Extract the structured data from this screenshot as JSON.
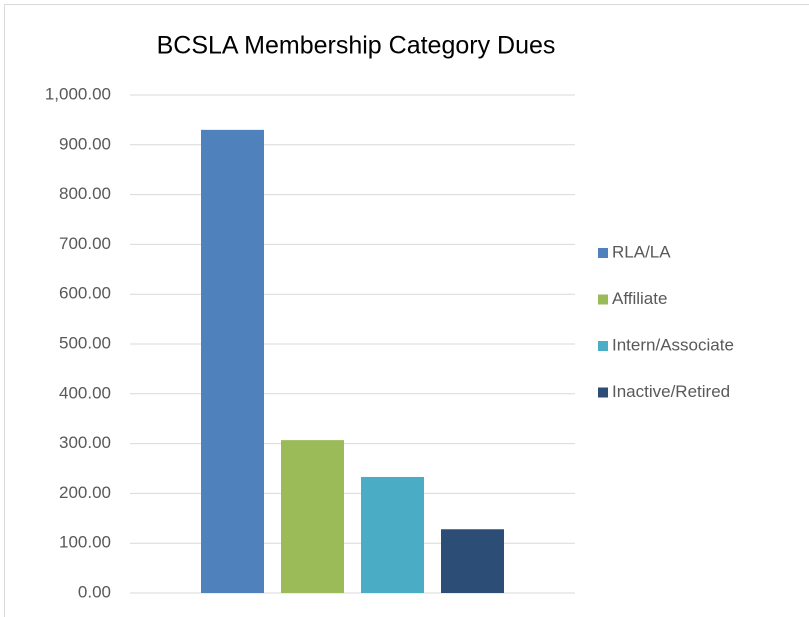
{
  "chart_data": {
    "type": "bar",
    "title": "BCSLA Membership Category Dues",
    "categories": [
      null
    ],
    "series": [
      {
        "name": "RLA/LA",
        "color": "#4f81bd",
        "values": [
          930
        ]
      },
      {
        "name": "Affiliate",
        "color": "#9bbb59",
        "values": [
          307
        ]
      },
      {
        "name": "Intern/Associate",
        "color": "#4bacc6",
        "values": [
          233
        ]
      },
      {
        "name": "Inactive/Retired",
        "color": "#2c4d75",
        "values": [
          128
        ]
      }
    ],
    "ylim": [
      0,
      1000
    ],
    "yticks": [
      {
        "value": 0,
        "label": "0.00"
      },
      {
        "value": 100,
        "label": "100.00"
      },
      {
        "value": 200,
        "label": "200.00"
      },
      {
        "value": 300,
        "label": "300.00"
      },
      {
        "value": 400,
        "label": "400.00"
      },
      {
        "value": 500,
        "label": "500.00"
      },
      {
        "value": 600,
        "label": "600.00"
      },
      {
        "value": 700,
        "label": "700.00"
      },
      {
        "value": 800,
        "label": "800.00"
      },
      {
        "value": 900,
        "label": "900.00"
      },
      {
        "value": 1000,
        "label": "1,000.00"
      }
    ],
    "grid": true,
    "legend": "right"
  }
}
